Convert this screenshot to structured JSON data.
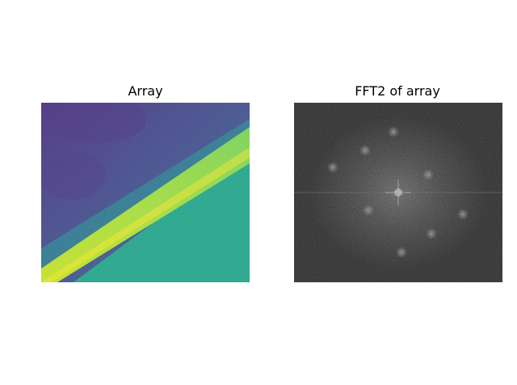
{
  "chart_data": [
    {
      "type": "heatmap",
      "title": "Array",
      "colormap": "viridis",
      "axes_visible": false,
      "description_of_content": "diagonal bright band running from lower-left to upper-right; dark purple/blue upper-left region, teal lower-right region",
      "colors": {
        "low": "#46327e",
        "mid_low": "#365c8d",
        "mid": "#277f8e",
        "mid_high": "#1fa187",
        "high": "#a0da39",
        "peak": "#fde725"
      }
    },
    {
      "type": "heatmap",
      "title": "FFT2 of array",
      "colormap": "gray",
      "axes_visible": false,
      "description_of_content": "grey noisy magnitude spectrum with central bright star and symmetric faint spots",
      "colors": {
        "background": "#555555",
        "center_glow": "#8c8c8c",
        "spot": "#c8c8c8"
      }
    }
  ]
}
